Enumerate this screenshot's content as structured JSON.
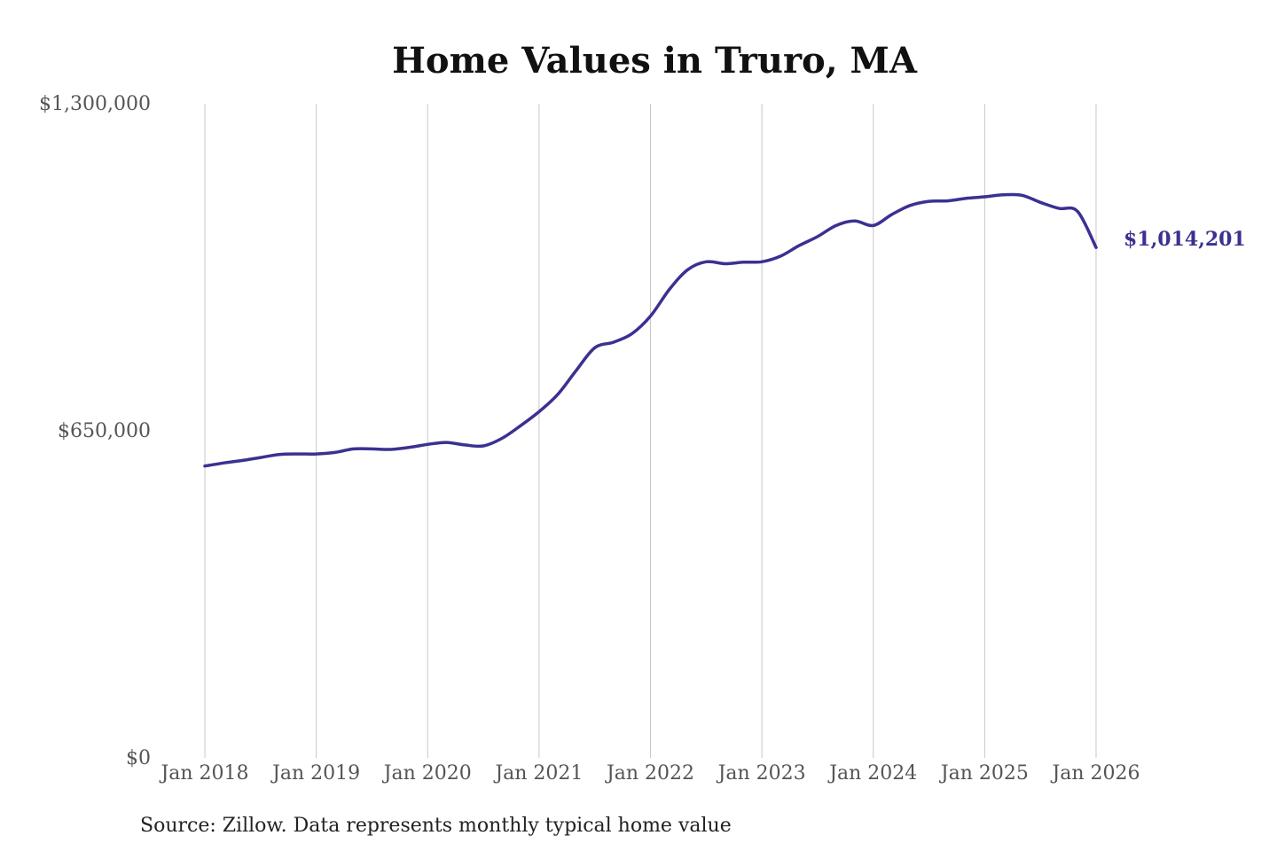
{
  "chart_data": {
    "type": "line",
    "title": "Home Values in Truro, MA",
    "xlabel": "",
    "ylabel": "",
    "source": "Source: Zillow. Data represents monthly typical home value",
    "x_ticks": [
      "Jan 2018",
      "Jan 2019",
      "Jan 2020",
      "Jan 2021",
      "Jan 2022",
      "Jan 2023",
      "Jan 2024",
      "Jan 2025",
      "Jan 2026"
    ],
    "y_ticks": [
      {
        "value": 0,
        "label": "$0"
      },
      {
        "value": 650000,
        "label": "$650,000"
      },
      {
        "value": 1300000,
        "label": "$1,300,000"
      }
    ],
    "ylim": [
      0,
      1300000
    ],
    "xlim": [
      "2018-01",
      "2026-01"
    ],
    "grid": "vertical",
    "line_color": "#3a3191",
    "end_label": "$1,014,201",
    "series": [
      {
        "x": [
          "2018-01",
          "2018-03",
          "2018-05",
          "2018-07",
          "2018-09",
          "2018-11",
          "2019-01",
          "2019-03",
          "2019-05",
          "2019-07",
          "2019-09",
          "2019-11",
          "2020-01",
          "2020-03",
          "2020-05",
          "2020-07",
          "2020-09",
          "2020-11",
          "2021-01",
          "2021-03",
          "2021-05",
          "2021-07",
          "2021-09",
          "2021-11",
          "2022-01",
          "2022-03",
          "2022-05",
          "2022-07",
          "2022-09",
          "2022-11",
          "2023-01",
          "2023-03",
          "2023-05",
          "2023-07",
          "2023-09",
          "2023-11",
          "2024-01",
          "2024-03",
          "2024-05",
          "2024-07",
          "2024-09",
          "2024-11",
          "2025-01",
          "2025-03",
          "2025-05",
          "2025-07",
          "2025-09",
          "2025-11",
          "2026-01"
        ],
        "values": [
          580000,
          586000,
          591000,
          597000,
          603000,
          604000,
          604000,
          607000,
          614000,
          614000,
          613000,
          617000,
          623000,
          627000,
          622000,
          620000,
          635000,
          660000,
          688000,
          722000,
          770000,
          815000,
          826000,
          843000,
          878000,
          930000,
          970000,
          986000,
          982000,
          985000,
          986000,
          997000,
          1018000,
          1036000,
          1058000,
          1067000,
          1058000,
          1080000,
          1098000,
          1106000,
          1107000,
          1112000,
          1115000,
          1119000,
          1118000,
          1104000,
          1092000,
          1086000,
          1014201
        ]
      }
    ]
  }
}
